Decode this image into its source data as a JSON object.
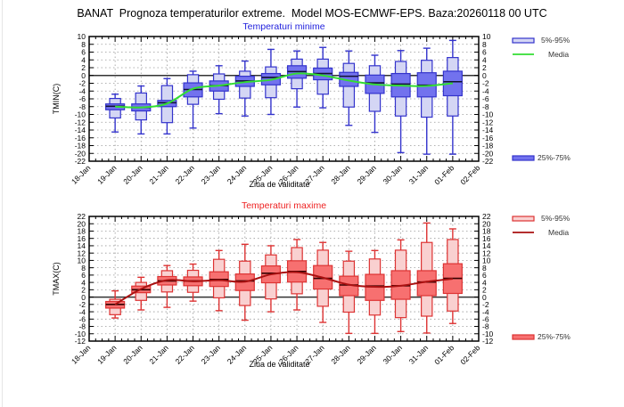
{
  "title": "BANAT  Prognoza temperaturilor extreme.  Model MOS-ECMWF-EPS. Baza:20260118 00 UTC",
  "chart_data": [
    {
      "type": "box",
      "title": "Temperaturi minime",
      "title_color": "#2222dd",
      "ylabel": "TMIN(C)",
      "xlabel": "Ziua de validitate",
      "ylim": [
        -22,
        10
      ],
      "ytick_step": 2,
      "grid": true,
      "x_tick_labels": [
        "18-Jan",
        "19-Jan",
        "20-Jan",
        "21-Jan",
        "22-Jan",
        "23-Jan",
        "24-Jan",
        "25-Jan",
        "26-Jan",
        "27-Jan",
        "28-Jan",
        "29-Jan",
        "30-Jan",
        "31-Jan",
        "01-Feb",
        "02-Feb"
      ],
      "categories": [
        "19-Jan",
        "20-Jan",
        "21-Jan",
        "22-Jan",
        "23-Jan",
        "24-Jan",
        "25-Jan",
        "26-Jan",
        "27-Jan",
        "28-Jan",
        "29-Jan",
        "30-Jan",
        "31-Jan",
        "01-Feb"
      ],
      "colors": {
        "outer_fill": "#d4d6f4",
        "inner_fill": "#7272ee",
        "stroke": "#3333cc",
        "median": "#111133",
        "mean_line": "#33dd33"
      },
      "legend": {
        "outer": "5%-95%",
        "mean": "Media",
        "inner": "25%-75%",
        "position": "right"
      },
      "series": {
        "whisker_low": [
          -14.5,
          -15.0,
          -15.0,
          -13.5,
          -9.8,
          -10.4,
          -10.0,
          -8.1,
          -8.3,
          -12.8,
          -14.6,
          -19.8,
          -20.2,
          -20.2
        ],
        "p5": [
          -10.9,
          -11.4,
          -12.1,
          -7.4,
          -6.1,
          -5.8,
          -5.7,
          -3.4,
          -4.8,
          -8.1,
          -9.2,
          -10.4,
          -10.7,
          -10.4
        ],
        "p25": [
          -8.8,
          -9.1,
          -8.0,
          -5.5,
          -4.0,
          -2.8,
          -2.4,
          -0.7,
          -1.1,
          -2.8,
          -4.6,
          -5.5,
          -5.5,
          -5.2
        ],
        "median": [
          -7.9,
          -8.2,
          -7.0,
          -3.6,
          -2.6,
          -1.4,
          -0.5,
          1.0,
          0.5,
          -0.2,
          -1.9,
          -2.2,
          -2.5,
          -1.6
        ],
        "p75": [
          -7.3,
          -7.3,
          -6.4,
          -1.9,
          -1.4,
          -0.2,
          0.5,
          2.5,
          1.9,
          0.8,
          0.1,
          0.5,
          0.7,
          1.1
        ],
        "p95": [
          -5.9,
          -4.5,
          -2.6,
          0.2,
          0.4,
          1.1,
          2.2,
          4.2,
          4.2,
          3.1,
          2.5,
          3.6,
          3.9,
          4.6
        ],
        "whisker_high": [
          -4.8,
          -2.7,
          -0.8,
          1.1,
          2.5,
          3.7,
          6.7,
          6.3,
          7.2,
          6.3,
          5.2,
          6.4,
          7.0,
          9.0
        ],
        "mean": [
          -8.0,
          -8.2,
          -7.2,
          -3.4,
          -2.6,
          -1.7,
          -1.1,
          0.5,
          0.0,
          -1.3,
          -2.3,
          -2.6,
          -2.7,
          -2.0
        ]
      }
    },
    {
      "type": "box",
      "title": "Temperaturi maxime",
      "title_color": "#ee2222",
      "ylabel": "TMAX(C)",
      "xlabel": "Ziua de validitate",
      "ylim": [
        -12,
        22
      ],
      "ytick_step": 2,
      "grid": true,
      "x_tick_labels": [
        "18-Jan",
        "19-Jan",
        "20-Jan",
        "21-Jan",
        "22-Jan",
        "23-Jan",
        "24-Jan",
        "25-Jan",
        "26-Jan",
        "27-Jan",
        "28-Jan",
        "29-Jan",
        "30-Jan",
        "31-Jan",
        "01-Feb",
        "02-Feb"
      ],
      "categories": [
        "19-Jan",
        "20-Jan",
        "21-Jan",
        "22-Jan",
        "23-Jan",
        "24-Jan",
        "25-Jan",
        "26-Jan",
        "27-Jan",
        "28-Jan",
        "29-Jan",
        "30-Jan",
        "31-Jan",
        "01-Feb"
      ],
      "colors": {
        "outer_fill": "#f9d0d0",
        "inner_fill": "#f77070",
        "stroke": "#dd3333",
        "median": "#330000",
        "mean_line": "#aa1111"
      },
      "legend": {
        "outer": "5%-95%",
        "mean": "Media",
        "inner": "25%-75%",
        "position": "right"
      },
      "series": {
        "whisker_low": [
          -5.7,
          -3.5,
          -2.8,
          -1.1,
          -3.7,
          -6.3,
          -4.0,
          -3.5,
          -6.9,
          -9.9,
          -9.9,
          -9.4,
          -9.8,
          -7.2
        ],
        "p5": [
          -4.8,
          -0.9,
          1.4,
          1.3,
          -0.2,
          -2.3,
          -0.5,
          0.9,
          -2.5,
          -4.1,
          -4.9,
          -5.6,
          -5.2,
          -3.8
        ],
        "p25": [
          -3.0,
          1.2,
          3.3,
          3.1,
          2.9,
          1.8,
          3.9,
          4.1,
          2.2,
          0.4,
          -0.9,
          -0.6,
          0.4,
          1.0
        ],
        "median": [
          -2.0,
          2.0,
          4.4,
          4.4,
          4.8,
          4.4,
          6.5,
          7.0,
          5.1,
          3.3,
          3.0,
          3.1,
          4.1,
          5.1
        ],
        "p75": [
          -1.2,
          3.0,
          5.6,
          5.5,
          6.9,
          6.3,
          8.5,
          9.9,
          8.6,
          5.7,
          6.2,
          7.2,
          7.2,
          9.1
        ],
        "p95": [
          -0.6,
          4.0,
          7.2,
          7.3,
          10.3,
          9.8,
          11.5,
          13.5,
          12.8,
          9.8,
          10.4,
          12.8,
          14.9,
          15.7
        ],
        "whisker_high": [
          1.7,
          5.4,
          8.6,
          9.0,
          12.7,
          14.4,
          14.0,
          15.7,
          14.9,
          12.5,
          12.7,
          15.6,
          20.2,
          18.6
        ],
        "mean": [
          -2.0,
          2.2,
          4.6,
          4.3,
          4.6,
          4.2,
          6.2,
          6.8,
          5.3,
          3.4,
          2.8,
          3.1,
          4.2,
          5.0
        ]
      }
    }
  ]
}
